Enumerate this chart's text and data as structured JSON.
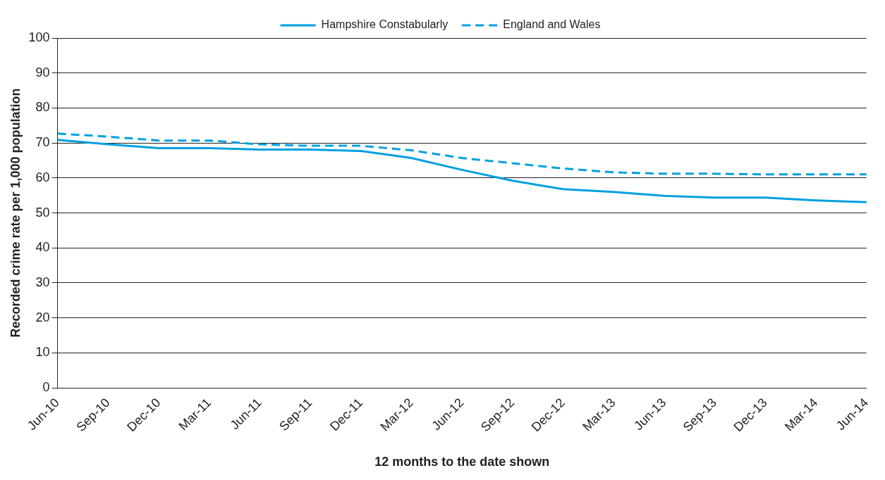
{
  "chart_data": {
    "type": "line",
    "xlabel": "12 months to the date shown",
    "ylabel": "Recorded crime rate per 1,000 population",
    "categories": [
      "Jun-10",
      "Sep-10",
      "Dec-10",
      "Mar-11",
      "Jun-11",
      "Sep-11",
      "Dec-11",
      "Mar-12",
      "Jun-12",
      "Sep-12",
      "Dec-12",
      "Mar-13",
      "Jun-13",
      "Sep-13",
      "Dec-13",
      "Mar-14",
      "Jun-14"
    ],
    "series": [
      {
        "name": "Hampshire Constabularly",
        "color": "#00a0e0",
        "line_style": "solid",
        "values": [
          70.9,
          69.6,
          68.5,
          68.5,
          68.1,
          68.1,
          67.7,
          65.7,
          62.3,
          59.2,
          56.8,
          56.0,
          54.9,
          54.4,
          54.4,
          53.6,
          53.1
        ]
      },
      {
        "name": "England and Wales",
        "color": "#00a0e0",
        "line_style": "dashed",
        "values": [
          72.7,
          71.8,
          70.7,
          70.7,
          69.6,
          69.2,
          69.2,
          67.9,
          65.7,
          64.2,
          62.7,
          61.6,
          61.2,
          61.2,
          61.0,
          61.0,
          61.0
        ]
      }
    ],
    "ylim": [
      0,
      100
    ],
    "yticks": [
      0,
      10,
      20,
      30,
      40,
      50,
      60,
      70,
      80,
      90,
      100
    ],
    "grid": "y",
    "legend": "top",
    "marker": "none"
  }
}
